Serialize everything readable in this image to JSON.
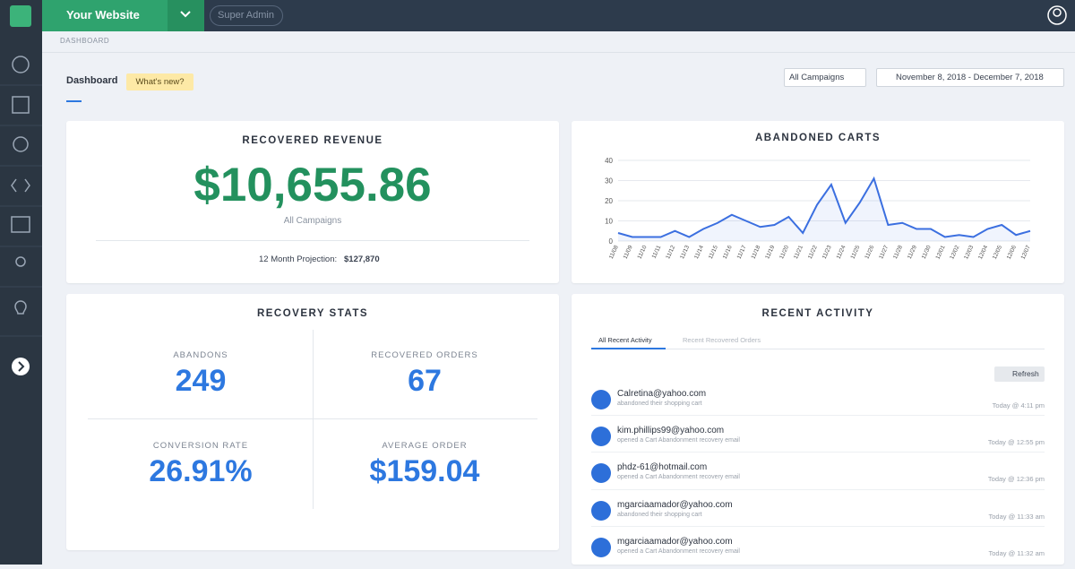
{
  "header": {
    "site": "Your Website",
    "role": "Super Admin"
  },
  "breadcrumb": "DASHBOARD",
  "toolbar": {
    "tab": "Dashboard",
    "badge": "What's new?",
    "campaign_select": "All Campaigns",
    "date_range": "November 8, 2018 - December 7, 2018"
  },
  "revenue": {
    "title": "RECOVERED REVENUE",
    "amount": "$10,655.86",
    "subtitle": "All Campaigns",
    "projection_label": "12 Month Projection:",
    "projection_value": "$127,870"
  },
  "stats": {
    "title": "RECOVERY STATS",
    "items": [
      {
        "label": "ABANDONS",
        "value": "249"
      },
      {
        "label": "RECOVERED ORDERS",
        "value": "67"
      },
      {
        "label": "CONVERSION RATE",
        "value": "26.91%"
      },
      {
        "label": "AVERAGE ORDER",
        "value": "$159.04"
      }
    ]
  },
  "activity": {
    "title": "RECENT ACTIVITY",
    "tabs": [
      "All Recent Activity",
      "Recent Recovered Orders"
    ],
    "refresh": "Refresh",
    "items": [
      {
        "email": "Calretina@yahoo.com",
        "action": "abandoned their shopping cart",
        "time": "Today @ 4:11 pm"
      },
      {
        "email": "kim.phillips99@yahoo.com",
        "action": "opened a Cart Abandonment recovery email",
        "time": "Today @ 12:55 pm"
      },
      {
        "email": "phdz-61@hotmail.com",
        "action": "opened a Cart Abandonment recovery email",
        "time": "Today @ 12:36 pm"
      },
      {
        "email": "mgarciaamador@yahoo.com",
        "action": "abandoned their shopping cart",
        "time": "Today @ 11:33 am"
      },
      {
        "email": "mgarciaamador@yahoo.com",
        "action": "opened a Cart Abandonment recovery email",
        "time": "Today @ 11:32 am"
      }
    ]
  },
  "chart_data": {
    "type": "line",
    "title": "ABANDONED CARTS",
    "categories": [
      "11/08",
      "11/09",
      "11/10",
      "11/11",
      "11/12",
      "11/13",
      "11/14",
      "11/15",
      "11/16",
      "11/17",
      "11/18",
      "11/19",
      "11/20",
      "11/21",
      "11/22",
      "11/23",
      "11/24",
      "11/25",
      "11/26",
      "11/27",
      "11/28",
      "11/29",
      "11/30",
      "12/01",
      "12/02",
      "12/03",
      "12/04",
      "12/05",
      "12/06",
      "12/07"
    ],
    "values": [
      4,
      2,
      2,
      2,
      5,
      2,
      6,
      9,
      13,
      10,
      7,
      8,
      12,
      4,
      18,
      28,
      9,
      19,
      31,
      8,
      9,
      6,
      6,
      2,
      3,
      2,
      6,
      8,
      3,
      5
    ],
    "color": "#3b6fe0",
    "ylim": [
      0,
      40
    ],
    "yticks": [
      0,
      10,
      20,
      30,
      40
    ],
    "grid": true
  }
}
